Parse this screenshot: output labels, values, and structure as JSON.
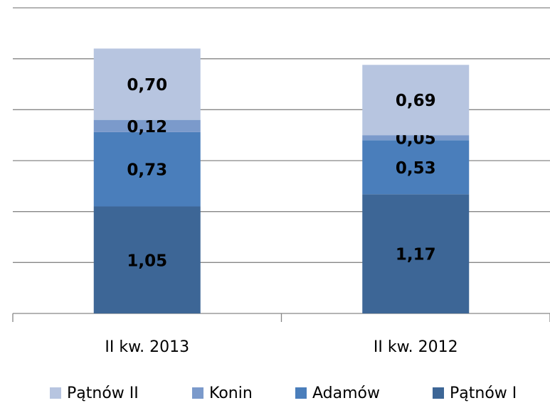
{
  "chart_data": {
    "type": "stacked_bar",
    "categories": [
      "II kw. 2013",
      "II kw. 2012"
    ],
    "series": [
      {
        "name": "Pątnów I",
        "color": "#3d6696",
        "values": [
          1.05,
          1.17
        ],
        "value_labels": [
          "1,05",
          "1,17"
        ]
      },
      {
        "name": "Adamów",
        "color": "#4a7ebb",
        "values": [
          0.73,
          0.53
        ],
        "value_labels": [
          "0,73",
          "0,53"
        ]
      },
      {
        "name": "Konin",
        "color": "#7b9acb",
        "values": [
          0.12,
          0.05
        ],
        "value_labels": [
          "0,12",
          "0,05"
        ]
      },
      {
        "name": "Pątnów II",
        "color": "#b7c5e0",
        "values": [
          0.7,
          0.69
        ],
        "value_labels": [
          "0,70",
          "0,69"
        ]
      }
    ],
    "ylim": [
      0,
      3
    ],
    "yticks": [
      0,
      0.5,
      1,
      1.5,
      2,
      2.5,
      3
    ],
    "grid": true,
    "legend": "bottom"
  }
}
